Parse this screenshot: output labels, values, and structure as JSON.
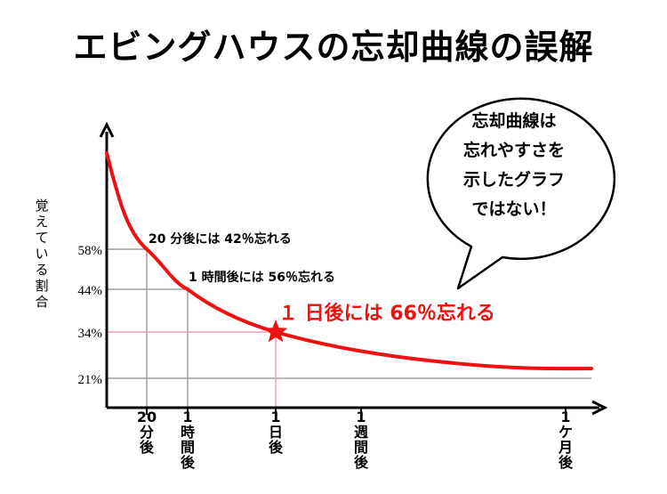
{
  "title": "エビングハウスの忘却曲線の誤解",
  "chart_data": {
    "type": "line",
    "ylabel": "覚えている割合",
    "y_ticks": [
      "58%",
      "44%",
      "34%",
      "21%"
    ],
    "y_tick_values": [
      58,
      44,
      34,
      21
    ],
    "x_ticks": [
      {
        "num": "20",
        "unit": [
          "分",
          "後"
        ]
      },
      {
        "num": "1",
        "unit": [
          "時",
          "間",
          "後"
        ]
      },
      {
        "num": "1",
        "unit": [
          "日",
          "後"
        ]
      },
      {
        "num": "1",
        "unit": [
          "週",
          "間",
          "後"
        ]
      },
      {
        "num": "1",
        "unit": [
          "ケ",
          "月",
          "後"
        ]
      }
    ],
    "series": [
      {
        "values": [
          100,
          58,
          44,
          34,
          25,
          21
        ]
      }
    ],
    "annotations": [
      {
        "text": "20 分後には 42％忘れる"
      },
      {
        "text": "1 時間後には 56％忘れる"
      },
      {
        "text": "１ 日後には 66％忘れる",
        "color": "#ee1111"
      }
    ],
    "callout_lines": [
      "忘却曲線は",
      "忘れやすさを",
      "示したグラフ",
      "ではない！"
    ],
    "colors": {
      "curve": "#ee1111",
      "grid": "#a0a0a0",
      "highlight_grid": "#f5a0b4",
      "marker": "#ee1111"
    }
  }
}
